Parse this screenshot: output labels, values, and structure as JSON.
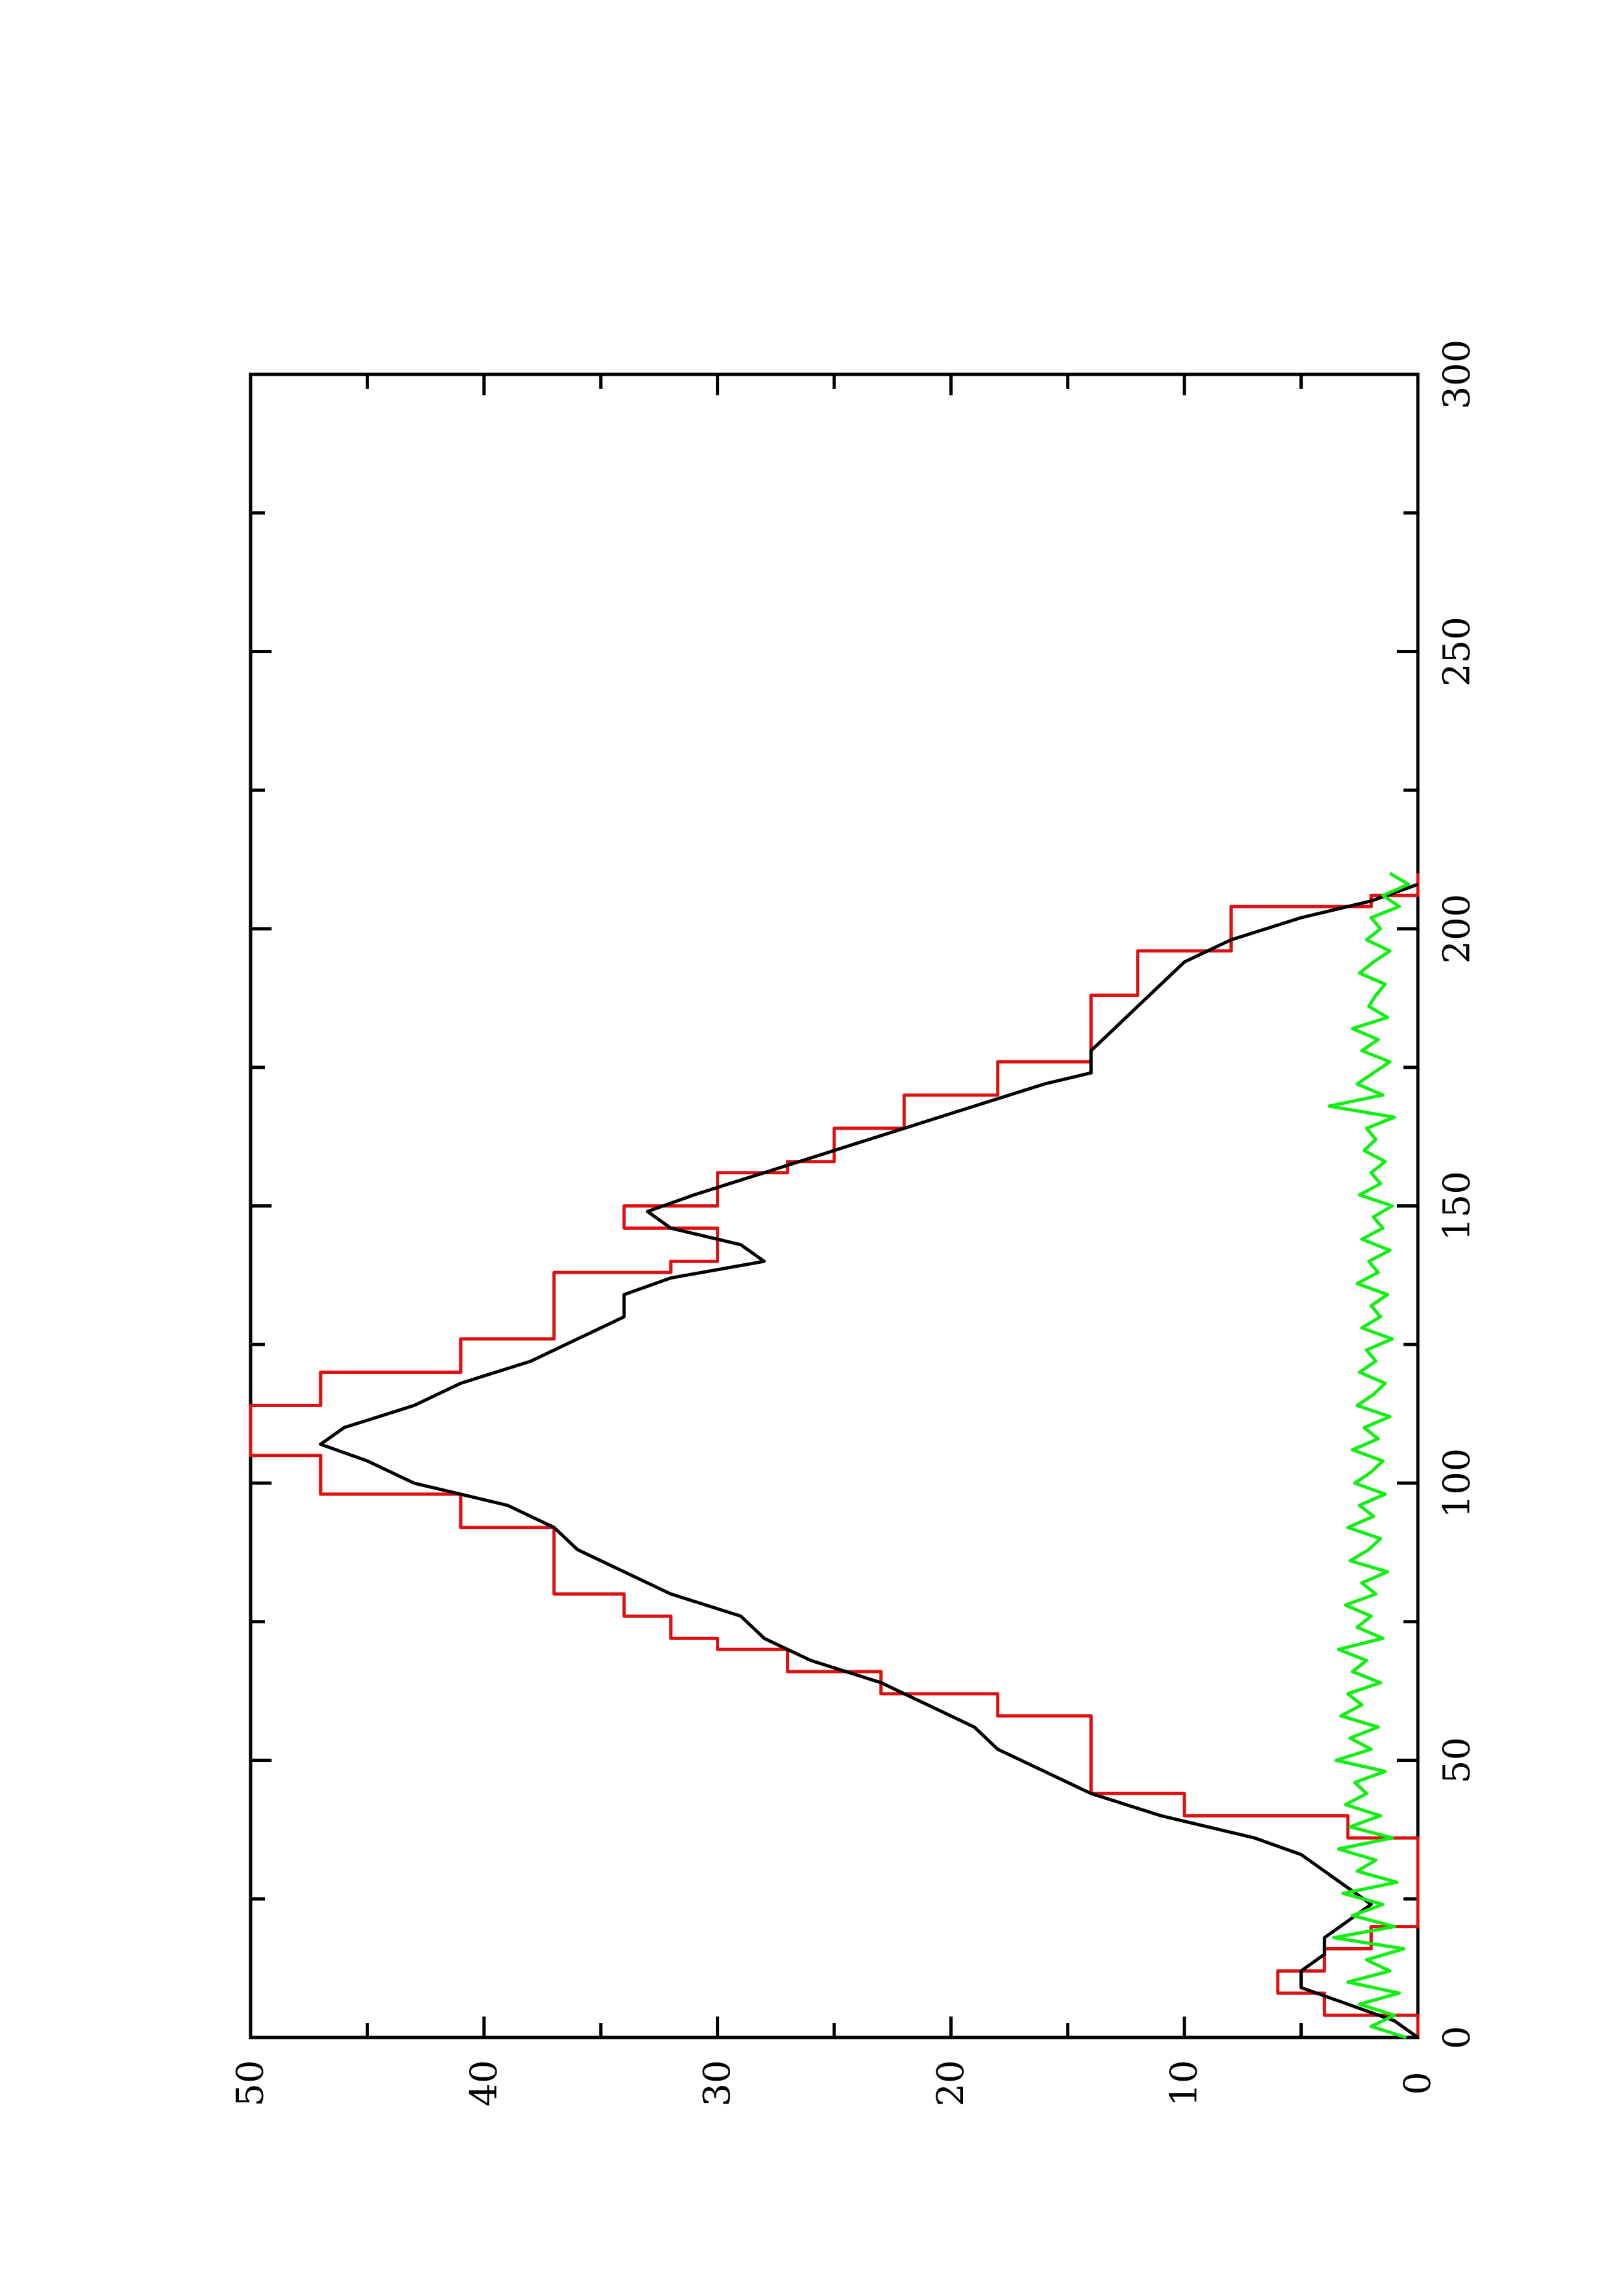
{
  "chart_data": {
    "type": "line",
    "orientation": "rotated 90° counter-clockwise (x axis runs vertically, y axis runs horizontally)",
    "title": "",
    "xlabel": "",
    "ylabel": "",
    "xlim": [
      0,
      300
    ],
    "ylim": [
      0,
      50
    ],
    "x_ticks": [
      0,
      50,
      100,
      150,
      200,
      250,
      300
    ],
    "x_minor_ticks": [
      25,
      75,
      125,
      175,
      225,
      275
    ],
    "y_ticks": [
      0,
      10,
      20,
      30,
      40,
      50
    ],
    "y_minor_ticks": [
      5,
      15,
      25,
      35,
      45
    ],
    "grid": false,
    "legend": "none",
    "colors": {
      "series_red": "#dd1111",
      "series_black": "#000000",
      "series_green": "#11ee11",
      "frame": "#000000"
    },
    "series": [
      {
        "color": "#dd1111",
        "style": "step",
        "x": [
          0,
          4,
          8,
          12,
          16,
          20,
          24,
          28,
          32,
          34,
          36,
          40,
          44,
          48,
          54,
          58,
          62,
          66,
          70,
          72,
          76,
          80,
          86,
          92,
          98,
          105,
          109,
          114,
          120,
          126,
          132,
          138,
          140,
          146,
          148,
          150,
          156,
          158,
          164,
          170,
          176,
          182,
          188,
          196,
          204,
          206,
          210
        ],
        "y": [
          0,
          4,
          6,
          4,
          2,
          0,
          0,
          0,
          0,
          0,
          3,
          10,
          14,
          14,
          14,
          18,
          23,
          27,
          30,
          32,
          34,
          37,
          37,
          41,
          47,
          50,
          50,
          47,
          41,
          37,
          37,
          32,
          30,
          34,
          34,
          30,
          27,
          25,
          22,
          18,
          14,
          14,
          12,
          8,
          2,
          0,
          0
        ]
      },
      {
        "color": "#000000",
        "style": "line",
        "x": [
          0,
          3,
          6,
          9,
          12,
          15,
          18,
          21,
          24,
          27,
          30,
          33,
          36,
          40,
          44,
          48,
          52,
          56,
          60,
          64,
          68,
          72,
          76,
          80,
          84,
          88,
          92,
          96,
          100,
          104,
          107,
          110,
          114,
          118,
          122,
          126,
          130,
          134,
          137,
          140,
          143,
          146,
          149,
          152,
          156,
          160,
          164,
          168,
          172,
          174,
          178,
          182,
          186,
          190,
          194,
          198,
          202,
          205,
          208
        ],
        "y": [
          0,
          1,
          3,
          5,
          5,
          4,
          4,
          3,
          2,
          3,
          4,
          5,
          7,
          11,
          14,
          16,
          18,
          19,
          21,
          23,
          26,
          28,
          29,
          32,
          34,
          36,
          37,
          39,
          43,
          45,
          47,
          46,
          43,
          41,
          38,
          36,
          34,
          34,
          32,
          28,
          29,
          32,
          33,
          31,
          28,
          25,
          22,
          19,
          16,
          14,
          14,
          13,
          12,
          11,
          10,
          8,
          5,
          2,
          0
        ]
      },
      {
        "color": "#11ee11",
        "style": "noisy",
        "x": [
          0,
          2,
          4,
          6,
          8,
          10,
          12,
          14,
          16,
          18,
          20,
          22,
          24,
          26,
          28,
          30,
          32,
          34,
          36,
          38,
          40,
          42,
          44,
          46,
          48,
          50,
          52,
          54,
          56,
          58,
          60,
          62,
          64,
          66,
          68,
          70,
          72,
          74,
          76,
          78,
          80,
          82,
          84,
          86,
          88,
          90,
          92,
          94,
          96,
          98,
          100,
          102,
          104,
          106,
          108,
          110,
          112,
          114,
          116,
          118,
          120,
          122,
          124,
          126,
          128,
          130,
          132,
          134,
          136,
          138,
          140,
          142,
          144,
          146,
          148,
          150,
          152,
          154,
          156,
          158,
          160,
          162,
          164,
          166,
          168,
          170,
          172,
          174,
          176,
          178,
          180,
          182,
          184,
          186,
          188,
          190,
          192,
          194,
          196,
          198,
          200,
          202,
          204,
          206,
          208,
          210
        ],
        "y": [
          0.5,
          2.0,
          1.0,
          2.5,
          0.8,
          3.0,
          1.2,
          2.2,
          0.6,
          3.6,
          1.0,
          2.8,
          1.5,
          3.2,
          0.9,
          2.6,
          1.8,
          3.4,
          1.1,
          2.9,
          1.6,
          3.1,
          2.2,
          2.7,
          1.4,
          3.5,
          2.0,
          2.9,
          1.7,
          3.3,
          2.4,
          3.0,
          1.6,
          2.8,
          2.2,
          3.4,
          1.5,
          2.6,
          2.0,
          3.1,
          1.8,
          2.4,
          1.3,
          2.9,
          2.1,
          1.6,
          3.0,
          1.9,
          2.5,
          1.4,
          2.7,
          2.0,
          1.5,
          2.8,
          1.7,
          2.3,
          1.2,
          2.6,
          1.9,
          1.4,
          2.5,
          1.8,
          2.2,
          1.1,
          2.4,
          1.6,
          2.0,
          1.3,
          2.6,
          1.7,
          2.1,
          1.2,
          2.4,
          1.5,
          1.9,
          1.1,
          2.5,
          1.6,
          2.0,
          1.4,
          2.3,
          1.8,
          2.2,
          1.0,
          3.8,
          1.5,
          2.6,
          1.9,
          1.2,
          2.4,
          1.7,
          2.8,
          1.3,
          2.1,
          1.8,
          1.4,
          2.5,
          1.9,
          1.2,
          2.2,
          1.6,
          2.0,
          0.8,
          1.5,
          0.4,
          1.2
        ]
      }
    ]
  }
}
